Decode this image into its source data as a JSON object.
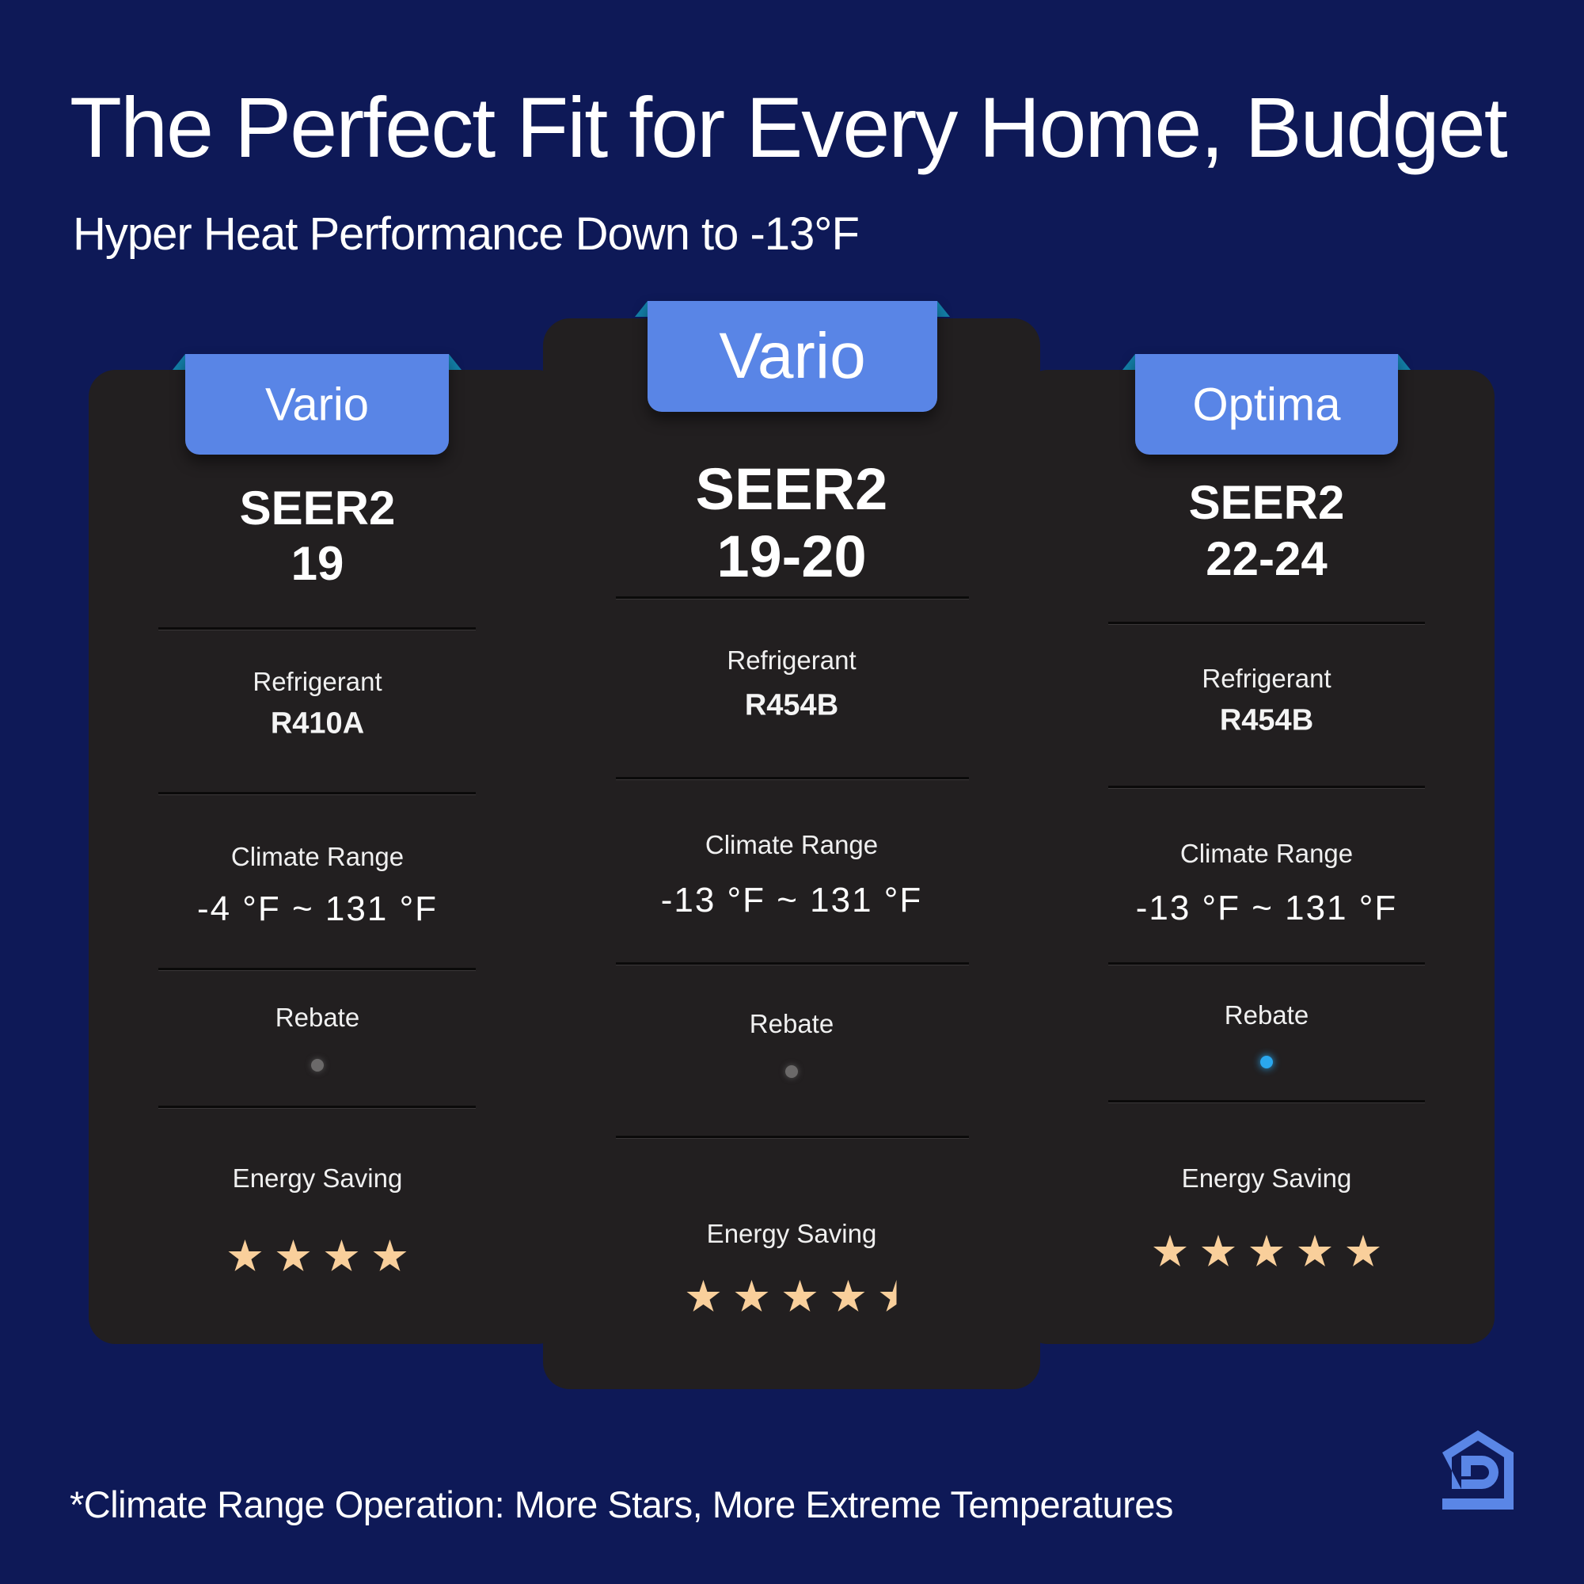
{
  "title": "The Perfect Fit for Every Home, Budget",
  "subtitle": "Hyper Heat Performance Down to -13°F",
  "footer": "*Climate Range Operation: More Stars, More Extreme Temperatures",
  "colors": {
    "background": "#0e1957",
    "card": "#221f20",
    "tab": "#5985e6",
    "star": "#f9cf9b",
    "rebate_active": "#2aa7ee",
    "rebate_inactive": "#6b6969"
  },
  "logo": {
    "icon": "house-logo-icon"
  },
  "labels": {
    "refrigerant": "Refrigerant",
    "climate": "Climate Range",
    "rebate": "Rebate",
    "energy": "Energy Saving"
  },
  "cards": [
    {
      "name": "Vario",
      "seer_label": "SEER2",
      "seer_value": "19",
      "refrigerant": "R410A",
      "climate_range": "-4 °F ~ 131 °F",
      "rebate": false,
      "energy_stars": 4
    },
    {
      "name": "Vario",
      "seer_label": "SEER2",
      "seer_value": "19-20",
      "refrigerant": "R454B",
      "climate_range": "-13 °F ~ 131 °F",
      "rebate": false,
      "energy_stars": 4.5,
      "featured": true
    },
    {
      "name": "Optima",
      "seer_label": "SEER2",
      "seer_value": "22-24",
      "refrigerant": "R454B",
      "climate_range": "-13 °F ~ 131 °F",
      "rebate": true,
      "energy_stars": 5
    }
  ]
}
